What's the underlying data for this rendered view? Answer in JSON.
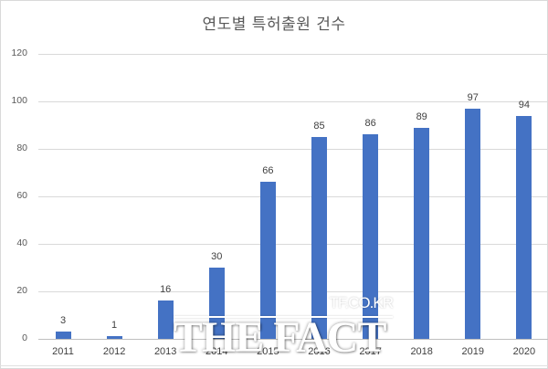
{
  "chart_data": {
    "type": "bar",
    "title": "연도별 특허출원 건수",
    "xlabel": "",
    "ylabel": "",
    "categories": [
      "2011",
      "2012",
      "2013",
      "2014",
      "2015",
      "2016",
      "2017",
      "2018",
      "2019",
      "2020"
    ],
    "values": [
      3,
      1,
      16,
      30,
      66,
      85,
      86,
      89,
      97,
      94
    ],
    "data_labels": [
      "3",
      "1",
      "16",
      "30",
      "66",
      "85",
      "86",
      "89",
      "97",
      "94"
    ],
    "ylim": [
      0,
      120
    ],
    "yticks": [
      "0",
      "20",
      "40",
      "60",
      "80",
      "100",
      "120"
    ],
    "grid": true,
    "legend": null,
    "bar_color": "#4472c4"
  },
  "watermark": {
    "sub": "TF.CO.KR",
    "main": "THE FACT"
  }
}
